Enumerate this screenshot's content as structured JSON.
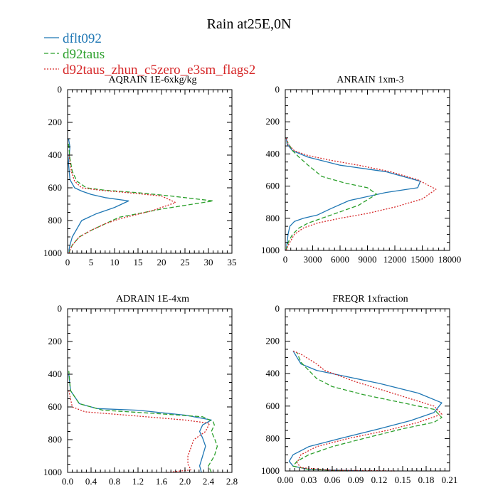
{
  "figure": {
    "title": "Rain at25E,0N",
    "legend": [
      {
        "name": "dflt092",
        "color": "#1f77b4",
        "dash": "solid"
      },
      {
        "name": "d92taus",
        "color": "#2ca02c",
        "dash": "dashed"
      },
      {
        "name": "d92taus_zhun_c5zero_e3sm_flags2",
        "color": "#d62728",
        "dash": "dotted"
      }
    ]
  },
  "chart_data": [
    {
      "type": "line",
      "title": "AQRAIN  1E-6xkg/kg",
      "xlim": [
        0,
        35
      ],
      "xticks": [
        0,
        5,
        10,
        15,
        20,
        25,
        30,
        35
      ],
      "xtick_labels": [
        "0",
        "5",
        "10",
        "15",
        "20",
        "25",
        "30",
        "35"
      ],
      "ylim": [
        1000,
        0
      ],
      "yticks": [
        0,
        200,
        400,
        600,
        800,
        1000
      ],
      "ytick_labels": [
        "0",
        "200",
        "400",
        "600",
        "800",
        "1000"
      ],
      "series": [
        {
          "name": "dflt092",
          "x": [
            0.3,
            0.3,
            0.5,
            1,
            2,
            3,
            6,
            10,
            13,
            8,
            5,
            3,
            1.5,
            0.5,
            0.2,
            0.5,
            0.2
          ],
          "y": [
            1000,
            980,
            950,
            900,
            850,
            800,
            760,
            720,
            680,
            660,
            640,
            620,
            600,
            550,
            450,
            350,
            300
          ]
        },
        {
          "name": "d92taus",
          "x": [
            0.3,
            0.5,
            1,
            2.5,
            5,
            8,
            11,
            20,
            31,
            22,
            15,
            8,
            4,
            2,
            1,
            0.5,
            0.2
          ],
          "y": [
            1000,
            980,
            950,
            900,
            860,
            820,
            780,
            730,
            680,
            650,
            630,
            615,
            600,
            560,
            500,
            420,
            330
          ]
        },
        {
          "name": "d92taus_zhun_c5zero_e3sm_flags2",
          "x": [
            0.3,
            0.5,
            1,
            2.5,
            5,
            8,
            11,
            18,
            23,
            20,
            13,
            7,
            3,
            1.5,
            0.8,
            0.3
          ],
          "y": [
            1000,
            980,
            950,
            900,
            860,
            820,
            790,
            740,
            690,
            650,
            630,
            615,
            600,
            560,
            500,
            400
          ]
        }
      ]
    },
    {
      "type": "line",
      "title": "ANRAIN  1xm-3",
      "xlim": [
        0,
        18000
      ],
      "xticks": [
        0,
        3000,
        6000,
        9000,
        12000,
        15000,
        18000
      ],
      "xtick_labels": [
        "0",
        "3000",
        "6000",
        "9000",
        "12000",
        "15000",
        "18000"
      ],
      "ylim": [
        1000,
        0
      ],
      "yticks": [
        0,
        200,
        400,
        600,
        800,
        1000
      ],
      "ytick_labels": [
        "0",
        "200",
        "400",
        "600",
        "800",
        "1000"
      ],
      "series": [
        {
          "name": "dflt092",
          "x": [
            100,
            200,
            300,
            500,
            1000,
            2000,
            3500,
            5000,
            7000,
            11000,
            14500,
            14800,
            11000,
            6000,
            2500,
            800,
            200,
            100
          ],
          "y": [
            1000,
            950,
            900,
            850,
            820,
            800,
            780,
            740,
            690,
            640,
            610,
            570,
            510,
            470,
            420,
            380,
            340,
            300
          ]
        },
        {
          "name": "d92taus",
          "x": [
            100,
            200,
            400,
            800,
            1500,
            2500,
            4000,
            6000,
            8000,
            10000,
            9000,
            6500,
            4000,
            2500,
            1500,
            800,
            200
          ],
          "y": [
            1000,
            970,
            940,
            900,
            860,
            830,
            800,
            760,
            720,
            650,
            610,
            580,
            540,
            470,
            420,
            380,
            320
          ]
        },
        {
          "name": "d92taus_zhun_c5zero_e3sm_flags2",
          "x": [
            100,
            300,
            600,
            1000,
            2000,
            3500,
            6000,
            9000,
            12000,
            15000,
            16500,
            14500,
            11500,
            8000,
            5000,
            2500,
            1000,
            300,
            100
          ],
          "y": [
            1000,
            970,
            940,
            900,
            860,
            830,
            800,
            770,
            730,
            680,
            620,
            560,
            510,
            470,
            440,
            410,
            380,
            340,
            300
          ]
        }
      ]
    },
    {
      "type": "line",
      "title": "ADRAIN  1E-4xm",
      "xlim": [
        0,
        2.8
      ],
      "xticks": [
        0.0,
        0.4,
        0.8,
        1.2,
        1.6,
        2.0,
        2.4,
        2.8
      ],
      "xtick_labels": [
        "0.0",
        "0.4",
        "0.8",
        "1.2",
        "1.6",
        "2.0",
        "2.4",
        "2.8"
      ],
      "ylim": [
        1000,
        0
      ],
      "yticks": [
        0,
        200,
        400,
        600,
        800,
        1000
      ],
      "ytick_labels": [
        "0",
        "200",
        "400",
        "600",
        "800",
        "1000"
      ],
      "series": [
        {
          "name": "dflt092",
          "x": [
            2.28,
            2.25,
            2.3,
            2.35,
            2.3,
            2.25,
            2.3,
            2.45,
            2.0,
            1.2,
            0.5,
            0.2,
            0.05,
            0.02
          ],
          "y": [
            1000,
            960,
            900,
            840,
            790,
            750,
            710,
            680,
            650,
            620,
            610,
            580,
            500,
            400
          ]
        },
        {
          "name": "d92taus",
          "x": [
            2.45,
            2.4,
            2.5,
            2.55,
            2.5,
            2.45,
            2.5,
            2.48,
            2.3,
            1.5,
            0.6,
            0.2,
            0.05,
            0.02
          ],
          "y": [
            1000,
            960,
            900,
            840,
            790,
            750,
            710,
            690,
            660,
            640,
            620,
            580,
            500,
            380
          ]
        },
        {
          "name": "d92taus_zhun_c5zero_e3sm_flags2",
          "x": [
            1.7,
            2.1,
            2.05,
            2.05,
            2.1,
            2.15,
            2.35,
            2.42,
            2.0,
            1.0,
            0.3,
            0.08,
            0.02
          ],
          "y": [
            1000,
            985,
            950,
            900,
            850,
            800,
            750,
            700,
            680,
            650,
            630,
            600,
            500
          ]
        }
      ]
    },
    {
      "type": "line",
      "title": "FREQR  1xfraction",
      "xlim": [
        0,
        0.21
      ],
      "xticks": [
        0.0,
        0.03,
        0.06,
        0.09,
        0.12,
        0.15,
        0.18,
        0.21
      ],
      "xtick_labels": [
        "0.00",
        "0.03",
        "0.06",
        "0.09",
        "0.12",
        "0.15",
        "0.18",
        "0.21"
      ],
      "ylim": [
        1000,
        0
      ],
      "yticks": [
        0,
        200,
        400,
        600,
        800,
        1000
      ],
      "ytick_labels": [
        "0",
        "200",
        "400",
        "600",
        "800",
        "1000"
      ],
      "series": [
        {
          "name": "dflt092",
          "x": [
            0.1,
            0.03,
            0.01,
            0.005,
            0.01,
            0.03,
            0.07,
            0.12,
            0.16,
            0.19,
            0.2,
            0.17,
            0.12,
            0.08,
            0.04,
            0.02,
            0.015,
            0.01
          ],
          "y": [
            1000,
            990,
            970,
            940,
            900,
            850,
            800,
            740,
            690,
            640,
            580,
            520,
            460,
            420,
            380,
            340,
            300,
            260
          ]
        },
        {
          "name": "d92taus",
          "x": [
            0.08,
            0.03,
            0.01,
            0.015,
            0.03,
            0.06,
            0.1,
            0.15,
            0.19,
            0.2,
            0.19,
            0.15,
            0.1,
            0.06,
            0.04,
            0.03,
            0.02,
            0.015
          ],
          "y": [
            1000,
            990,
            970,
            940,
            900,
            850,
            800,
            740,
            700,
            670,
            620,
            580,
            530,
            480,
            430,
            380,
            330,
            270
          ]
        },
        {
          "name": "d92taus_zhun_c5zero_e3sm_flags2",
          "x": [
            0.14,
            0.06,
            0.02,
            0.015,
            0.02,
            0.04,
            0.08,
            0.13,
            0.17,
            0.2,
            0.19,
            0.15,
            0.09,
            0.05,
            0.04,
            0.03,
            0.02,
            0.01
          ],
          "y": [
            1000,
            995,
            980,
            950,
            900,
            850,
            800,
            750,
            700,
            650,
            600,
            540,
            450,
            380,
            340,
            310,
            280,
            260
          ]
        }
      ]
    }
  ]
}
